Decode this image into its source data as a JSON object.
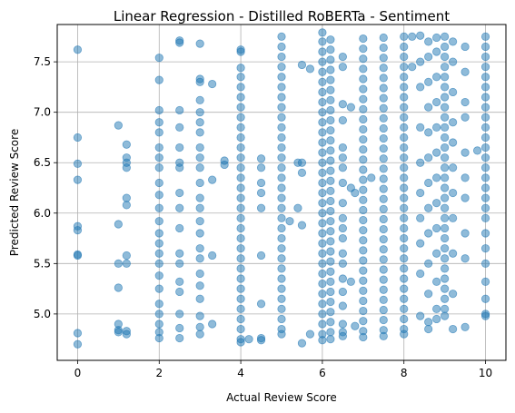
{
  "chart_data": {
    "type": "scatter",
    "title": "Linear Regression - Distilled RoBERTa - Sentiment",
    "xlabel": "Actual Review Score",
    "ylabel": "Predicted Review Score",
    "xlim": [
      -0.5,
      10.5
    ],
    "ylim": [
      4.54,
      7.87
    ],
    "xticks": [
      0,
      2,
      4,
      6,
      8,
      10
    ],
    "yticks": [
      5.0,
      5.5,
      6.0,
      6.5,
      7.0,
      7.5
    ],
    "ytick_labels": [
      "5.0",
      "5.5",
      "6.0",
      "6.5",
      "7.0",
      "7.5"
    ],
    "grid": true,
    "marker_color": "#1f77b4",
    "marker_alpha": 0.5,
    "series": [
      {
        "columns": [
          {
            "x": 0,
            "y": [
              7.62,
              6.75,
              6.49,
              6.33,
              5.87,
              5.83,
              5.59,
              5.58,
              4.81,
              4.7
            ]
          },
          {
            "x": 1,
            "y": [
              6.87,
              5.89,
              5.5,
              5.26,
              4.9,
              4.84,
              4.82
            ]
          },
          {
            "x": 1.2,
            "y": [
              6.68,
              6.55,
              6.5,
              6.45,
              6.15,
              6.08,
              5.58,
              5.5,
              4.83,
              4.8
            ]
          },
          {
            "x": 2,
            "y": [
              7.54,
              7.32,
              7.02,
              6.9,
              6.8,
              6.65,
              6.55,
              6.45,
              6.3,
              6.18,
              6.05,
              5.92,
              5.8,
              5.7,
              5.6,
              5.5,
              5.38,
              5.25,
              5.1,
              5.0,
              4.9,
              4.82,
              4.76
            ]
          },
          {
            "x": 2.5,
            "y": [
              7.71,
              7.69,
              7.02,
              6.85,
              6.65,
              6.5,
              6.45,
              6.2,
              6.05,
              5.85,
              5.6,
              5.5,
              5.32,
              5.22,
              5.0,
              4.86,
              4.76
            ]
          },
          {
            "x": 3,
            "y": [
              7.68,
              7.33,
              7.3,
              7.12,
              7.0,
              6.9,
              6.8,
              6.65,
              6.55,
              6.45,
              6.3,
              6.15,
              6.05,
              5.92,
              5.8,
              5.65,
              5.55,
              5.4,
              5.28,
              5.15,
              4.98,
              4.87,
              4.8
            ]
          },
          {
            "x": 3.3,
            "y": [
              7.28,
              6.33,
              5.58,
              4.9
            ]
          },
          {
            "x": 3.6,
            "y": [
              6.52,
              6.48
            ]
          },
          {
            "x": 4,
            "y": [
              7.62,
              7.6,
              7.44,
              7.35,
              7.25,
              7.15,
              7.05,
              6.95,
              6.85,
              6.75,
              6.65,
              6.55,
              6.45,
              6.35,
              6.25,
              6.15,
              6.05,
              5.95,
              5.85,
              5.75,
              5.65,
              5.55,
              5.45,
              5.35,
              5.25,
              5.15,
              5.05,
              4.95,
              4.85,
              4.75,
              4.72
            ]
          },
          {
            "x": 4.2,
            "y": [
              4.75
            ]
          },
          {
            "x": 4.5,
            "y": [
              6.54,
              6.45,
              6.3,
              6.2,
              6.05,
              5.58,
              5.1,
              4.76,
              4.74
            ]
          },
          {
            "x": 5,
            "y": [
              7.75,
              7.65,
              7.55,
              7.45,
              7.35,
              7.25,
              7.15,
              7.05,
              6.95,
              6.85,
              6.75,
              6.65,
              6.55,
              6.45,
              6.35,
              6.25,
              6.15,
              6.05,
              5.95,
              5.85,
              5.75,
              5.65,
              5.55,
              5.45,
              5.35,
              5.25,
              5.15,
              5.05,
              4.95,
              4.85,
              4.8
            ]
          },
          {
            "x": 5.2,
            "y": [
              5.92
            ]
          },
          {
            "x": 5.4,
            "y": [
              6.5,
              6.05
            ]
          },
          {
            "x": 5.5,
            "y": [
              7.47,
              6.5,
              6.4,
              5.88,
              4.71
            ]
          },
          {
            "x": 5.7,
            "y": [
              7.43,
              4.8
            ]
          },
          {
            "x": 6,
            "y": [
              7.79,
              7.7,
              7.6,
              7.5,
              7.4,
              7.3,
              7.2,
              7.1,
              7.0,
              6.9,
              6.8,
              6.7,
              6.6,
              6.5,
              6.4,
              6.3,
              6.2,
              6.1,
              6.0,
              5.9,
              5.8,
              5.7,
              5.6,
              5.5,
              5.4,
              5.3,
              5.2,
              5.1,
              5.0,
              4.9,
              4.8,
              4.74
            ]
          },
          {
            "x": 6.2,
            "y": [
              7.72,
              7.62,
              7.52,
              7.42,
              7.32,
              7.22,
              7.12,
              7.02,
              6.92,
              6.82,
              6.72,
              6.62,
              6.52,
              6.42,
              6.32,
              6.22,
              6.12,
              6.02,
              5.92,
              5.82,
              5.72,
              5.62,
              5.52,
              5.42,
              5.32,
              5.22,
              5.12,
              5.02,
              4.92,
              4.82,
              4.75
            ]
          },
          {
            "x": 6.5,
            "y": [
              7.55,
              7.45,
              7.08,
              6.92,
              6.65,
              6.55,
              6.45,
              6.3,
              6.1,
              5.95,
              5.85,
              5.75,
              5.6,
              5.5,
              5.35,
              5.22,
              5.08,
              4.9,
              4.82,
              4.78
            ]
          },
          {
            "x": 6.7,
            "y": [
              7.05,
              6.25,
              5.32
            ]
          },
          {
            "x": 6.8,
            "y": [
              6.2,
              4.88
            ]
          },
          {
            "x": 7,
            "y": [
              7.73,
              7.63,
              7.53,
              7.43,
              7.33,
              7.23,
              7.13,
              7.03,
              6.93,
              6.83,
              6.73,
              6.63,
              6.53,
              6.43,
              6.33,
              6.23,
              6.13,
              6.03,
              5.93,
              5.83,
              5.73,
              5.63,
              5.53,
              5.43,
              5.33,
              5.23,
              5.13,
              5.03,
              4.93,
              4.83,
              4.77
            ]
          },
          {
            "x": 7.2,
            "y": [
              6.35
            ]
          },
          {
            "x": 7.5,
            "y": [
              7.74,
              7.64,
              7.54,
              7.44,
              7.34,
              7.24,
              7.14,
              7.04,
              6.94,
              6.84,
              6.74,
              6.64,
              6.54,
              6.44,
              6.34,
              6.24,
              6.14,
              6.04,
              5.94,
              5.84,
              5.74,
              5.64,
              5.54,
              5.44,
              5.34,
              5.24,
              5.14,
              5.04,
              4.94,
              4.84,
              4.78
            ]
          },
          {
            "x": 8,
            "y": [
              7.75,
              7.65,
              7.55,
              7.45,
              7.35,
              7.25,
              7.15,
              7.05,
              6.95,
              6.85,
              6.75,
              6.65,
              6.55,
              6.45,
              6.35,
              6.25,
              6.15,
              6.05,
              5.95,
              5.85,
              5.75,
              5.65,
              5.55,
              5.45,
              5.35,
              5.25,
              5.15,
              5.05,
              4.95,
              4.85,
              4.8
            ]
          },
          {
            "x": 8.2,
            "y": [
              7.75,
              7.45
            ]
          },
          {
            "x": 8.4,
            "y": [
              7.76,
              7.5,
              7.25,
              6.85,
              6.5,
              6.2,
              5.95,
              5.7,
              5.4,
              4.98
            ]
          },
          {
            "x": 8.6,
            "y": [
              7.7,
              7.55,
              7.3,
              7.05,
              6.8,
              6.55,
              6.3,
              6.05,
              5.8,
              5.5,
              5.2,
              4.92,
              4.85
            ]
          },
          {
            "x": 8.8,
            "y": [
              7.74,
              7.6,
              7.35,
              7.1,
              6.85,
              6.6,
              6.35,
              6.1,
              5.85,
              5.6,
              5.32,
              5.05,
              4.95
            ]
          },
          {
            "x": 9,
            "y": [
              7.75,
              7.65,
              7.55,
              7.45,
              7.35,
              7.25,
              7.15,
              7.05,
              6.95,
              6.85,
              6.75,
              6.65,
              6.55,
              6.45,
              6.35,
              6.25,
              6.15,
              6.05,
              5.95,
              5.85,
              5.75,
              5.65,
              5.55,
              5.45,
              5.35,
              5.25,
              5.15,
              5.05,
              4.98
            ]
          },
          {
            "x": 9.2,
            "y": [
              7.7,
              7.5,
              7.2,
              6.9,
              6.7,
              6.45,
              6.2,
              5.95,
              5.6,
              5.2,
              4.85
            ]
          },
          {
            "x": 9.5,
            "y": [
              7.65,
              7.4,
              7.1,
              6.95,
              6.6,
              6.35,
              6.15,
              5.8,
              5.55,
              4.87
            ]
          },
          {
            "x": 9.8,
            "y": [
              6.62
            ]
          },
          {
            "x": 10,
            "y": [
              7.75,
              7.65,
              7.55,
              7.45,
              7.35,
              7.25,
              7.15,
              7.05,
              6.95,
              6.85,
              6.75,
              6.65,
              6.55,
              6.45,
              6.35,
              6.25,
              6.15,
              6.05,
              5.95,
              5.8,
              5.65,
              5.5,
              5.32,
              5.15,
              5.0,
              4.98
            ]
          }
        ]
      }
    ]
  }
}
